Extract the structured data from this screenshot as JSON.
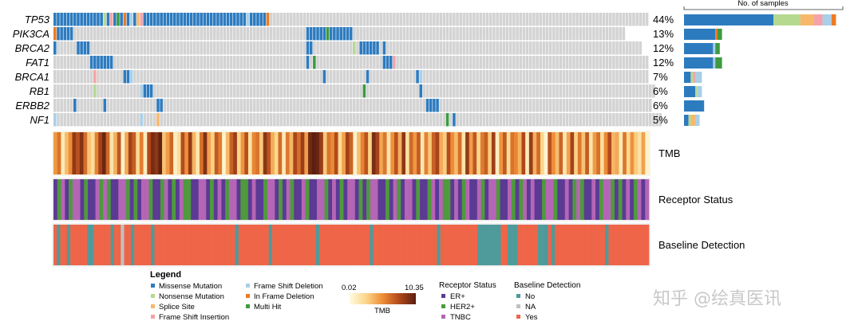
{
  "chart_data": {
    "type": "heatmap",
    "title": "",
    "colors": {
      "background": "#d3d3d3",
      "missense": "#2d7bbf",
      "nonsense": "#b5d98f",
      "splice": "#f6b86b",
      "fsins": "#f4a3a8",
      "fsdel": "#a9cfe9",
      "inframe": "#ee7a22",
      "multi": "#3d9a3f",
      "er": "#5b3a94",
      "her2": "#4e9a3c",
      "tnbc": "#b565b5",
      "base_no": "#4f9a9b",
      "base_na": "#c0c0c0",
      "base_yes": "#ee6548",
      "tmb_low": "#fffbe1",
      "tmb_high": "#5a1e10"
    },
    "genes": [
      {
        "name": "TP53",
        "pct": "44%",
        "code": "MMMMMMMMMMMMMMMNMFMHMIMDMSFMMMMMMMMMMMMMMMMMMMMMMMMMMMMMMMDMMMMMIGGGGGGGGGGGGGGGGGGGGGGGGGGGGGGGGGGGGGGGGGGGGGGGGGGGGGGGGGGGGGGGGGGGGGGGGGGGGGGGGGGGGGGGGGGGGGGGGGGGGGGGGGGGGGGGGGG"
      },
      {
        "name": "PIK3CA",
        "pct": "13%",
        "code": "IMMMMMGGGGGGGGGGGGGGGGGGGGGGGGGGGGGGGGGGGGGGGGGGGGGGGGGGGGGGGGGGGGGGGGGGGGGGMMMMMMHMMMMMMMGGGGGGGGGGGGGGGGGGGGGGGGGGGGGGGGGGGGGGGGGGGGGGGGGGGGGGGGGGGGGGGGGGGGGGGGGGGGGGGGGG"
      },
      {
        "name": "BRCA2",
        "pct": "12%",
        "code": "MGGGGGGMMMMGGGGGGGGGGGGGGGGGGGGGGGGGGGGGGGGGGGGGGGGGGGGGGGGGGGGGGGGGGGGGGGGGMMGGGGGGGGGGGGNGMMMMMMGMGGGGGGGGGGGGGGGGGGGGGGGGGGGGGGGGGGGGGGGGGGGGGGGGGGGGGGGGGGGGGGGGGGGGGGGGGGGGG"
      },
      {
        "name": "FAT1",
        "pct": "12%",
        "code": "GGGGGGGGGGGMMMMMMMGGGGGGGGGGGGGGGGGGGGGGGGGGGGGGGGGGGGGGGGGGGGGGGGGGGGGGGGGGMGHGGGGGGGGGGGGGGGGGGGGMMMFGGGGGGGGGGGGGGGGGGGGGGGGGGGGGGGGGGGGGGGGGGGGGGGGGGGGGGGGGGGGGGGGGGGGGGGGGGGG"
      },
      {
        "name": "BRCA1",
        "pct": "7%",
        "code": "GGGGGGGGGGGGFGGGGGGGGMMDGGGGGGGGGGGGGGGGGGGGGGGGGGGGGGGGGGGGGGGGGGGGGGGGGGGGGGGGGMGGGGGGGGGGGGMGGGGGGGGGGGGGGMDGGGGGGGGGGGGGGGGGGGGGGGGGGGGGGGGGGGGGGGGGGGGGGGGGGGGGGGGGGGGGGGGGGGG"
      },
      {
        "name": "RB1",
        "pct": "6%",
        "code": "GGGGGGGGGGGGNGGGGGGGGGGGGGDMMMGGGGGGGGGGGGGGGGGGGGGGGGGGGGGGGGGGGGGGGGGGGGGGGGGGGGGGGGGGGGGGGHGGGGGGGGGGGGGGGGMGGGGGGGGGGGGGGGGGGGGGGGGGGGGGGGGGGGGGGGGGGGGGGGGGGGGGGGGGGGGGGGGGGGGGG"
      },
      {
        "name": "ERBB2",
        "pct": "6%",
        "code": "GGGGGGMGGGGGGGGMGGGGGGGGGGGGGGGMMGGGGGGGGGGGGGGGGGGGGGGGGGGGGGGGGGGGGGGGGGGGGGGGGGGGGGGGGGGGGGGGGGGGGGGGGGGGGGGGMMMMGGGGGGGGGGGGGGGGGGGGGGGGGGGGGGGGGGGGGGGGGGGGGGGGGGGGGGGGGGGGGGGG"
      },
      {
        "name": "NF1",
        "pct": "5%",
        "code": "DGGGGGGGGGGGGGGGGGGGGGGGGGDGGGGSGGGGGGGGGGGGGGGGGGGGGGGGGGGGGGGGGGGGGGGGGGGGGGGGGGGGGGGGGGGGGGGGGGGGGGGGGGGGGGGGGGGGGGHGMGGGGGGGGGGGGGGGGGGGGGGGGGGGGGGGGGGGGGGGGGGGGGGGGGGGGGGGGGGGGGG"
      }
    ],
    "bar_colors": [
      "missense",
      "nonsense",
      "splice",
      "fsins",
      "fsdel",
      "inframe",
      "multi"
    ],
    "bar_counts": [
      [
        40,
        12,
        6,
        4,
        4,
        2
      ],
      [
        14,
        0,
        0,
        0,
        0,
        1,
        2
      ],
      [
        13,
        0,
        0,
        0,
        1,
        0,
        2
      ],
      [
        13,
        0,
        0,
        0,
        1,
        0,
        3
      ],
      [
        3,
        1,
        0,
        1,
        3
      ],
      [
        5,
        1,
        0,
        0,
        2
      ],
      [
        9
      ],
      [
        2,
        1,
        2,
        0,
        2
      ]
    ],
    "bar_header": "No. of samples",
    "tmb_values": [
      4.8,
      6.1,
      1.2,
      3.5,
      5.2,
      8.7,
      7.4,
      9.1,
      6.3,
      3.2,
      2.1,
      5.6,
      8.2,
      9.8,
      6.5,
      1.7,
      3.9,
      7.2,
      0.8,
      4.2,
      8.1,
      6.9,
      2.4,
      5.7,
      1.1,
      7.8,
      9.5,
      8.8,
      10.1,
      3.3,
      4.7,
      6.6,
      0.9,
      2.2,
      7.6,
      5.1,
      8.6,
      3.8,
      1.5,
      6.2,
      9.2,
      4.4,
      2.8,
      7.1,
      5.8,
      0.6,
      3.6,
      6.8,
      8.3,
      2.6,
      4.9,
      7.5,
      1.9,
      5.4,
      6.1,
      3.1,
      8.9,
      7.3,
      4.1,
      2.5,
      6.4,
      1.3,
      5.9,
      3.7,
      7.9,
      6.3,
      8.4,
      4.6,
      9.6,
      10.3,
      9.9,
      8.5,
      3.1,
      6.1,
      5.3,
      7.7,
      2.3,
      4.5,
      8.2,
      6.7,
      0.7,
      3.4,
      5.5,
      7.3,
      2.7,
      9.4,
      8.1,
      4.3,
      6.0,
      1.6,
      5.0,
      7.4,
      3.9,
      8.8,
      2.0,
      6.5,
      4.8,
      7.0,
      1.4,
      5.6,
      3.2,
      6.8,
      8.0,
      4.1,
      2.9,
      7.6,
      5.2,
      3.6,
      6.3,
      1.8,
      8.6,
      4.6,
      7.2,
      2.5,
      5.8,
      6.9,
      3.0,
      8.3,
      1.0,
      4.9,
      7.1,
      2.2,
      6.1,
      5.4,
      3.8,
      7.8,
      1.2,
      8.5,
      4.0,
      6.4,
      2.6,
      0.5,
      7.4,
      5.1,
      3.5,
      6.7,
      1.5,
      4.4,
      8.1,
      2.8,
      5.9,
      3.3,
      7.0,
      1.7,
      4.7,
      6.2,
      2.1,
      5.3,
      7.7,
      3.7,
      4.2,
      1.3,
      6.0,
      2.4,
      5.0,
      3.0,
      1.9,
      4.5,
      0.6
    ],
    "receptor_code": "EHTEHTTEHEETHTHEETTHEHETTHEEHTEHETHHEETTEHETEHTTEHHETEEHTTEHETHEETHEETTHETEHETTEHEHTTEEHETHETTEHEEHTETHHETEHTEETHETTHEETHEHTETEEHTTHEETEHTHEETEHTTHEHETEHTET",
    "baseline_code": "YNYYNYYYYYNNYYYYYNYYAYYNYYYYYNYYYYYYYYYYYYYYYYYYYYYYYYNYYYYYYYYYNYYYYYYYYYYYYYNYYYYYYYYYYYYYYYNYYYYYYYYYYYYYYYYYYYNYYYYYYYYYYYNNNNNNNYYNNNYYYYYYNNNYNYYYYYYYYYYYYYYYNYYYYYYYYYYYY",
    "tracks": {
      "tmb": "TMB",
      "receptor": "Receptor Status",
      "baseline": "Baseline Detection"
    },
    "legend": {
      "title": "Legend",
      "mutations": [
        {
          "key": "missense",
          "label": "Missense Mutation"
        },
        {
          "key": "nonsense",
          "label": "Nonsense Mutation"
        },
        {
          "key": "splice",
          "label": "Splice Site"
        },
        {
          "key": "fsins",
          "label": "Frame Shift Insertion"
        },
        {
          "key": "fsdel",
          "label": "Frame Shift Deletion"
        },
        {
          "key": "inframe",
          "label": "In Frame Deletion"
        },
        {
          "key": "multi",
          "label": "Multi Hit"
        }
      ],
      "tmb_min": "0.02",
      "tmb_max": "10.35",
      "tmb_label": "TMB",
      "receptor_title": "Receptor Status",
      "receptor_items": [
        {
          "key": "er",
          "label": "ER+"
        },
        {
          "key": "her2",
          "label": "HER2+"
        },
        {
          "key": "tnbc",
          "label": "TNBC"
        }
      ],
      "baseline_title": "Baseline Detection",
      "baseline_items": [
        {
          "key": "base_no",
          "label": "No"
        },
        {
          "key": "base_na",
          "label": "NA"
        },
        {
          "key": "base_yes",
          "label": "Yes"
        }
      ]
    },
    "watermark": "知乎 @绘真医讯"
  }
}
